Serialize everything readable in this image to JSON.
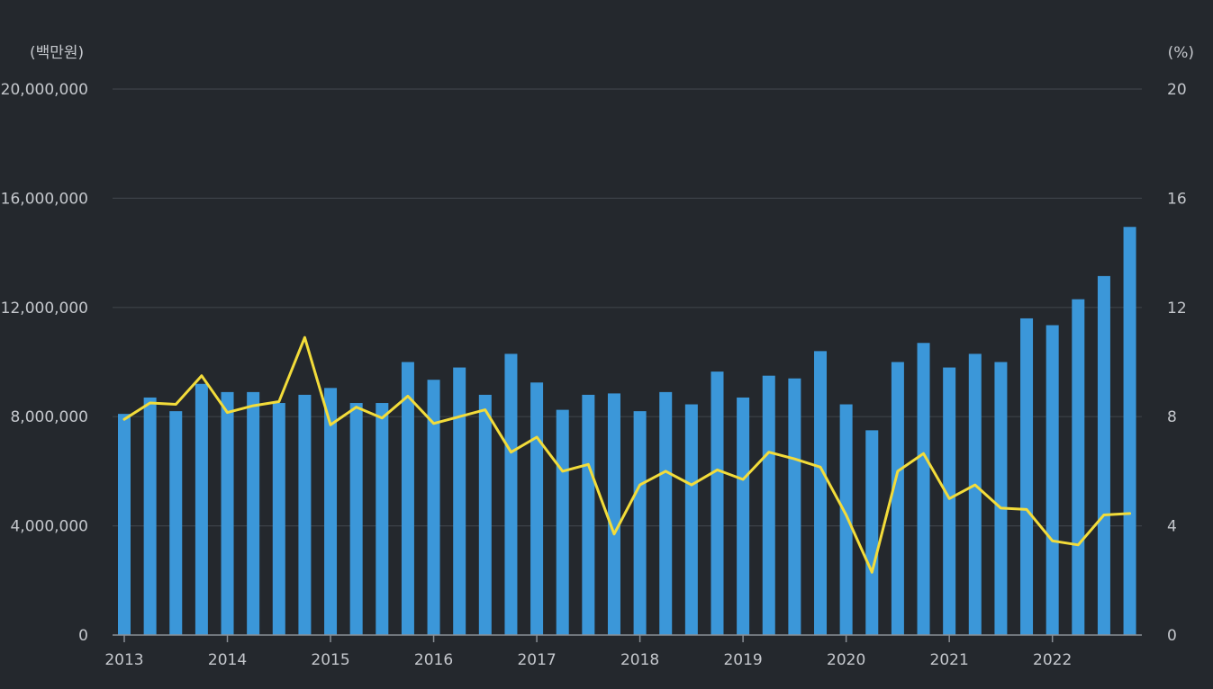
{
  "chart_data": {
    "type": "bar",
    "y_unit_left": "(백만원)",
    "y_unit_right": "(%)",
    "ylim_left": [
      0,
      20000000
    ],
    "ylim_right": [
      0,
      20
    ],
    "y_ticks_left": [
      "0",
      "4,000,000",
      "8,000,000",
      "12,000,000",
      "16,000,000",
      "20,000,000"
    ],
    "y_ticks_right": [
      "0",
      "4",
      "8",
      "12",
      "16",
      "20"
    ],
    "x_tick_labels": [
      "2013",
      "2014",
      "2015",
      "2016",
      "2017",
      "2018",
      "2019",
      "2020",
      "2021",
      "2022"
    ],
    "grid": true,
    "legend": "none",
    "x": [
      "2013Q1",
      "2013Q2",
      "2013Q3",
      "2013Q4",
      "2014Q1",
      "2014Q2",
      "2014Q3",
      "2014Q4",
      "2015Q1",
      "2015Q2",
      "2015Q3",
      "2015Q4",
      "2016Q1",
      "2016Q2",
      "2016Q3",
      "2016Q4",
      "2017Q1",
      "2017Q2",
      "2017Q3",
      "2017Q4",
      "2018Q1",
      "2018Q2",
      "2018Q3",
      "2018Q4",
      "2019Q1",
      "2019Q2",
      "2019Q3",
      "2019Q4",
      "2020Q1",
      "2020Q2",
      "2020Q3",
      "2020Q4",
      "2021Q1",
      "2021Q2",
      "2021Q3",
      "2021Q4",
      "2022Q1",
      "2022Q2",
      "2022Q3",
      "2022Q4"
    ],
    "series": [
      {
        "type": "bar",
        "axis": "left",
        "color": "#3b97d9",
        "values": [
          8100000,
          8700000,
          8200000,
          9200000,
          8900000,
          8900000,
          8500000,
          8800000,
          9050000,
          8500000,
          8500000,
          10000000,
          9350000,
          9800000,
          8800000,
          10300000,
          9250000,
          8250000,
          8800000,
          8850000,
          8200000,
          8900000,
          8450000,
          9650000,
          8700000,
          9500000,
          9400000,
          10400000,
          8450000,
          7500000,
          10000000,
          10700000,
          9800000,
          10300000,
          10000000,
          11600000,
          11350000,
          12300000,
          13150000,
          14950000
        ]
      },
      {
        "type": "line",
        "axis": "right",
        "color": "#f3dc3a",
        "values": [
          7.9,
          8.5,
          8.45,
          9.5,
          8.15,
          8.4,
          8.55,
          10.9,
          7.7,
          8.35,
          7.95,
          8.75,
          7.75,
          8.0,
          8.25,
          6.7,
          7.25,
          6.0,
          6.25,
          3.7,
          5.5,
          6.0,
          5.5,
          6.05,
          5.7,
          6.7,
          6.45,
          6.15,
          4.4,
          2.3,
          6.0,
          6.65,
          5.0,
          5.5,
          4.65,
          4.6,
          3.45,
          3.3,
          4.4,
          4.45
        ]
      }
    ]
  }
}
